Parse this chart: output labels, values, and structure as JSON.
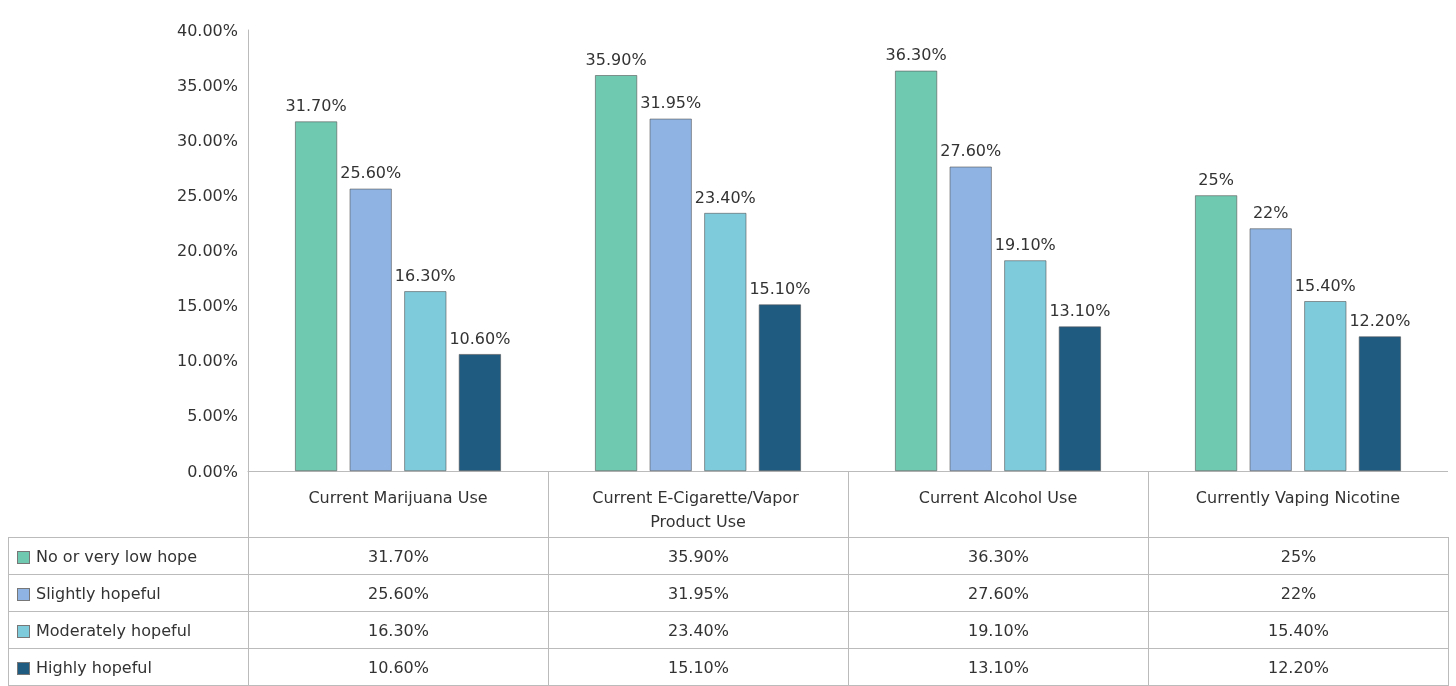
{
  "chart_data": {
    "type": "bar",
    "categories": [
      "Current Marijuana Use",
      "Current E-Cigarette/Vapor Product Use",
      "Current Alcohol Use",
      "Currently Vaping Nicotine"
    ],
    "series": [
      {
        "name": "No or very low hope",
        "color": "#6fc8b0",
        "values": [
          31.7,
          35.9,
          36.3,
          25
        ],
        "value_labels": [
          "31.70%",
          "35.90%",
          "36.30%",
          "25%"
        ]
      },
      {
        "name": "Slightly hopeful",
        "color": "#8fb4e3",
        "values": [
          25.6,
          31.95,
          27.6,
          22
        ],
        "value_labels": [
          "25.60%",
          "31.95%",
          "27.60%",
          "22%"
        ]
      },
      {
        "name": "Moderately hopeful",
        "color": "#7ecbdc",
        "values": [
          16.3,
          23.4,
          19.1,
          15.4
        ],
        "value_labels": [
          "16.30%",
          "23.40%",
          "19.10%",
          "15.40%"
        ]
      },
      {
        "name": "Highly hopeful",
        "color": "#1f5a80",
        "values": [
          10.6,
          15.1,
          13.1,
          12.2
        ],
        "value_labels": [
          "10.60%",
          "15.10%",
          "13.10%",
          "12.20%"
        ]
      }
    ],
    "ylim": [
      0,
      40
    ],
    "yticks": [
      {
        "value": 0,
        "label": "0.00%"
      },
      {
        "value": 5,
        "label": "5.00%"
      },
      {
        "value": 10,
        "label": "10.00%"
      },
      {
        "value": 15,
        "label": "15.00%"
      },
      {
        "value": 20,
        "label": "20.00%"
      },
      {
        "value": 25,
        "label": "25.00%"
      },
      {
        "value": 30,
        "label": "30.00%"
      },
      {
        "value": 35,
        "label": "35.00%"
      },
      {
        "value": 40,
        "label": "40.00%"
      }
    ],
    "grid": false,
    "legend": "bottom"
  }
}
